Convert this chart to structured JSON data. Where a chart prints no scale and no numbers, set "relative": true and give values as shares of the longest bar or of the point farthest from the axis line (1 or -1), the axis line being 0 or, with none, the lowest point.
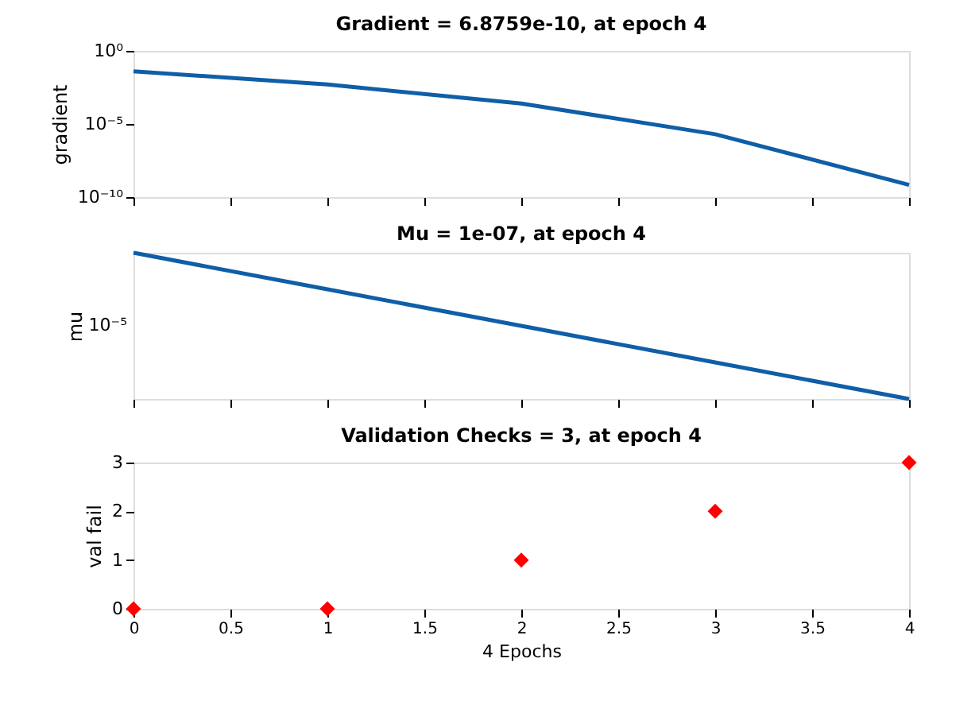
{
  "chart_data": [
    {
      "type": "line",
      "title": "Gradient = 6.8759e-10, at epoch 4",
      "ylabel": "gradient",
      "x": [
        0,
        1,
        2,
        3,
        4
      ],
      "series": [
        {
          "color": "#0f5ea8",
          "values": [
            0.04,
            0.005,
            0.00025,
            2e-06,
            6.8759e-10
          ]
        }
      ],
      "log": "y",
      "ylim": [
        1e-10,
        1
      ],
      "yticks": [
        {
          "value": 1e-10,
          "label": "10⁻¹⁰"
        },
        {
          "value": 1e-05,
          "label": "10⁻⁵"
        },
        {
          "value": 1,
          "label": "10⁰"
        }
      ],
      "xlim": [
        0,
        4
      ],
      "xticks": [
        0,
        0.5,
        1,
        1.5,
        2,
        2.5,
        3,
        3.5,
        4
      ],
      "tick_labels": "y",
      "marker": "none",
      "grid": false
    },
    {
      "type": "line",
      "title": "Mu = 1e-07, at epoch 4",
      "ylabel": "mu",
      "x": [
        0,
        1,
        2,
        3,
        4
      ],
      "series": [
        {
          "color": "#0f5ea8",
          "values": [
            1,
            0.75,
            0.5,
            0.25,
            0
          ]
        }
      ],
      "relative": true,
      "annotations": [
        "10⁻⁵"
      ],
      "xlim": [
        0,
        4
      ],
      "xticks": [
        0,
        0.5,
        1,
        1.5,
        2,
        2.5,
        3,
        3.5,
        4
      ],
      "tick_labels": "y",
      "marker": "none",
      "grid": false
    },
    {
      "type": "scatter",
      "title": "Validation Checks = 3, at epoch 4",
      "ylabel": "val fail",
      "xlabel": "4 Epochs",
      "x": [
        0,
        1,
        2,
        3,
        4
      ],
      "series": [
        {
          "color": "#ff0000",
          "values": [
            0,
            0,
            1,
            2,
            3
          ]
        }
      ],
      "ylim": [
        0,
        3
      ],
      "yticks": [
        0,
        1,
        2,
        3
      ],
      "xlim": [
        0,
        4
      ],
      "xticks": [
        0,
        0.5,
        1,
        1.5,
        2,
        2.5,
        3,
        3.5,
        4
      ],
      "marker": "diamond",
      "grid": false
    }
  ]
}
